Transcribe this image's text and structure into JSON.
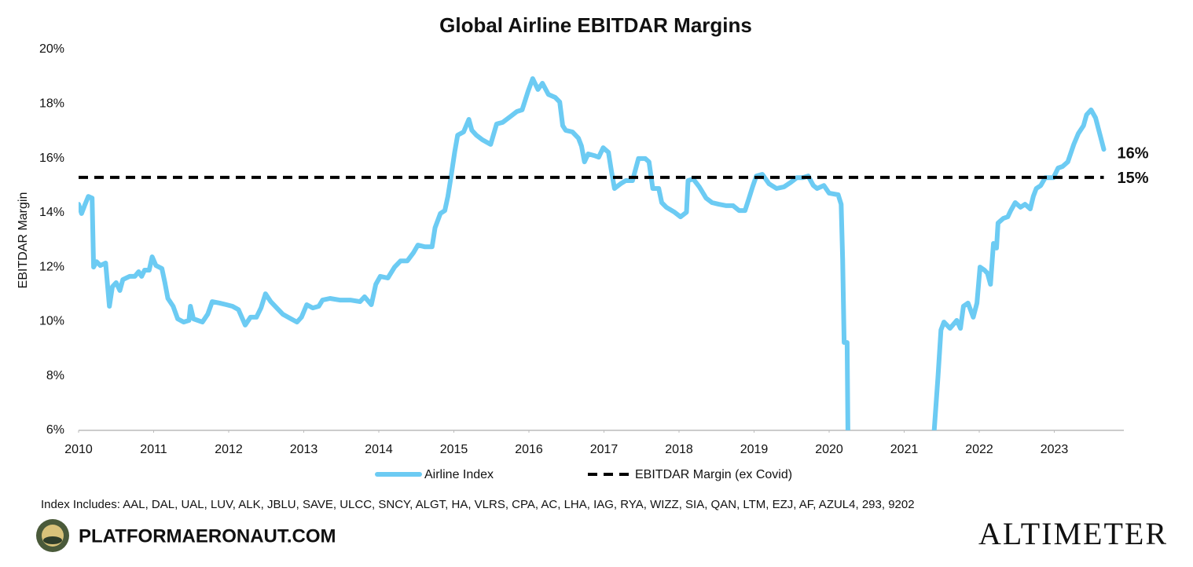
{
  "chart_data": {
    "type": "line",
    "title": "Global Airline EBITDAR Margins",
    "y_label": "EBITDAR Margin",
    "x": [
      2010.0,
      2010.04,
      2010.08,
      2010.13,
      2010.18,
      2010.2,
      2010.24,
      2010.29,
      2010.36,
      2010.41,
      2010.45,
      2010.5,
      2010.55,
      2010.59,
      2010.68,
      2010.75,
      2010.8,
      2010.84,
      2010.88,
      2010.94,
      2010.98,
      2011.03,
      2011.11,
      2011.15,
      2011.19,
      2011.26,
      2011.32,
      2011.4,
      2011.47,
      2011.49,
      2011.53,
      2011.59,
      2011.65,
      2011.72,
      2011.78,
      2011.88,
      2011.97,
      2012.05,
      2012.13,
      2012.22,
      2012.29,
      2012.37,
      2012.43,
      2012.49,
      2012.56,
      2012.64,
      2012.72,
      2012.83,
      2012.91,
      2012.97,
      2013.04,
      2013.12,
      2013.2,
      2013.25,
      2013.35,
      2013.48,
      2013.62,
      2013.75,
      2013.81,
      2013.9,
      2013.96,
      2014.02,
      2014.12,
      2014.21,
      2014.29,
      2014.38,
      2014.46,
      2014.52,
      2014.61,
      2014.71,
      2014.75,
      2014.82,
      2014.88,
      2014.92,
      2014.96,
      2015.01,
      2015.05,
      2015.13,
      2015.2,
      2015.24,
      2015.3,
      2015.38,
      2015.49,
      2015.57,
      2015.65,
      2015.76,
      2015.84,
      2015.91,
      2015.99,
      2016.05,
      2016.12,
      2016.18,
      2016.26,
      2016.35,
      2016.41,
      2016.45,
      2016.49,
      2016.58,
      2016.66,
      2016.7,
      2016.74,
      2016.79,
      2016.87,
      2016.93,
      2016.99,
      2017.06,
      2017.1,
      2017.14,
      2017.22,
      2017.29,
      2017.38,
      2017.46,
      2017.55,
      2017.6,
      2017.65,
      2017.73,
      2017.77,
      2017.83,
      2017.94,
      2018.02,
      2018.1,
      2018.12,
      2018.19,
      2018.27,
      2018.36,
      2018.44,
      2018.53,
      2018.63,
      2018.72,
      2018.8,
      2018.88,
      2018.94,
      2018.98,
      2019.03,
      2019.11,
      2019.2,
      2019.3,
      2019.4,
      2019.49,
      2019.57,
      2019.65,
      2019.72,
      2019.79,
      2019.84,
      2019.93,
      2020.0,
      2020.12,
      2020.16,
      2020.18,
      2020.2,
      2020.24,
      2020.25,
      2020.8,
      2021.4,
      2021.45,
      2021.49,
      2021.53,
      2021.61,
      2021.7,
      2021.75,
      2021.79,
      2021.85,
      2021.92,
      2021.97,
      2022.01,
      2022.07,
      2022.11,
      2022.15,
      2022.19,
      2022.23,
      2022.25,
      2022.32,
      2022.38,
      2022.42,
      2022.48,
      2022.55,
      2022.61,
      2022.68,
      2022.72,
      2022.76,
      2022.82,
      2022.88,
      2022.95,
      2022.99,
      2023.05,
      2023.11,
      2023.18,
      2023.26,
      2023.32,
      2023.39,
      2023.43,
      2023.49,
      2023.55,
      2023.61,
      2023.66
    ],
    "series": [
      {
        "name": "Airline Index",
        "color": "#6ccbf3",
        "end_label": "16%",
        "values": [
          14.31,
          13.97,
          14.26,
          14.6,
          14.54,
          12.0,
          12.2,
          12.06,
          12.15,
          10.56,
          11.28,
          11.43,
          11.14,
          11.54,
          11.66,
          11.66,
          11.83,
          11.66,
          11.89,
          11.89,
          12.38,
          12.06,
          11.95,
          11.43,
          10.85,
          10.56,
          10.1,
          9.98,
          10.04,
          10.56,
          10.1,
          10.04,
          9.98,
          10.27,
          10.73,
          10.68,
          10.62,
          10.56,
          10.44,
          9.87,
          10.16,
          10.16,
          10.5,
          11.02,
          10.73,
          10.5,
          10.27,
          10.1,
          9.98,
          10.16,
          10.62,
          10.5,
          10.56,
          10.79,
          10.85,
          10.79,
          10.79,
          10.73,
          10.91,
          10.62,
          11.37,
          11.66,
          11.6,
          12.0,
          12.23,
          12.23,
          12.52,
          12.81,
          12.75,
          12.75,
          13.45,
          13.97,
          14.08,
          14.6,
          15.29,
          16.22,
          16.85,
          16.97,
          17.43,
          17.03,
          16.85,
          16.68,
          16.51,
          17.26,
          17.32,
          17.55,
          17.72,
          17.78,
          18.47,
          18.93,
          18.53,
          18.76,
          18.35,
          18.24,
          18.07,
          17.2,
          17.03,
          16.97,
          16.74,
          16.45,
          15.87,
          16.16,
          16.1,
          16.04,
          16.39,
          16.22,
          15.53,
          14.89,
          15.06,
          15.18,
          15.18,
          15.99,
          15.99,
          15.87,
          14.89,
          14.89,
          14.37,
          14.2,
          14.02,
          13.85,
          14.02,
          15.18,
          15.24,
          14.95,
          14.54,
          14.37,
          14.31,
          14.26,
          14.26,
          14.08,
          14.08,
          14.6,
          14.95,
          15.35,
          15.41,
          15.06,
          14.89,
          14.95,
          15.12,
          15.29,
          15.29,
          15.35,
          15.0,
          14.89,
          15.0,
          14.72,
          14.66,
          14.31,
          12.29,
          9.23,
          9.23,
          6,
          null,
          6,
          7.96,
          9.69,
          9.98,
          9.75,
          10.04,
          9.75,
          10.56,
          10.68,
          10.16,
          10.68,
          12.0,
          11.89,
          11.77,
          11.37,
          12.87,
          12.7,
          13.62,
          13.79,
          13.85,
          14.08,
          14.37,
          14.2,
          14.31,
          14.14,
          14.6,
          14.89,
          15.0,
          15.29,
          15.29,
          15.29,
          15.64,
          15.7,
          15.87,
          16.51,
          16.91,
          17.2,
          17.6,
          17.78,
          17.49,
          16.85,
          16.33
        ]
      }
    ],
    "reference_line": {
      "name": "EBITDAR Margin (ex Covid)",
      "value": 15.3,
      "label": "15%",
      "color": "#000000"
    },
    "xlim": [
      2010,
      2024
    ],
    "xticks": [
      2010,
      2011,
      2012,
      2013,
      2014,
      2015,
      2016,
      2017,
      2018,
      2019,
      2020,
      2021,
      2022,
      2023
    ],
    "ylim": [
      6,
      20
    ],
    "yticks": [
      {
        "value": 6,
        "label": "6%"
      },
      {
        "value": 8,
        "label": "8%"
      },
      {
        "value": 10,
        "label": "10%"
      },
      {
        "value": 12,
        "label": "12%"
      },
      {
        "value": 14,
        "label": "14%"
      },
      {
        "value": 16,
        "label": "16%"
      },
      {
        "value": 18,
        "label": "18%"
      },
      {
        "value": 20,
        "label": "20%"
      }
    ],
    "grid": false
  },
  "footer": {
    "note": "Index Includes: AAL, DAL, UAL, LUV, ALK, JBLU, SAVE, ULCC, SNCY, ALGT, HA, VLRS, CPA, AC, LHA, IAG, RYA, WIZZ, SIA, QAN, LTM, EZJ, AF, AZUL4, 293, 9202",
    "site": "PLATFORMAERONAUT.COM",
    "brand": "ALTIMETER"
  }
}
